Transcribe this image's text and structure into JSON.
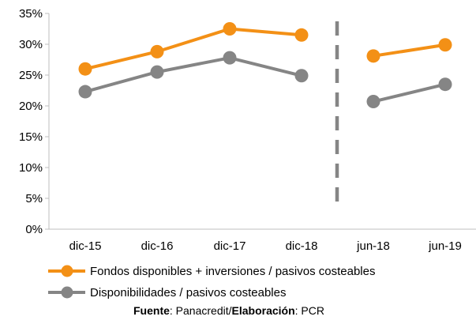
{
  "chart_data": {
    "type": "line",
    "categories": [
      "dic-15",
      "dic-16",
      "dic-17",
      "dic-18",
      "jun-18",
      "jun-19"
    ],
    "segments": [
      [
        0,
        1,
        2,
        3
      ],
      [
        4,
        5
      ]
    ],
    "y_ticks": [
      "0%",
      "5%",
      "10%",
      "15%",
      "20%",
      "25%",
      "30%",
      "35%"
    ],
    "ylim": [
      0,
      35
    ],
    "grid": false,
    "separator": "dashed vertical line between dic-18 and jun-18",
    "legend_position": "bottom",
    "series": [
      {
        "name": "Fondos disponibles + inversiones / pasivos costeables",
        "color": "#F39016",
        "values": [
          26.0,
          28.8,
          32.5,
          31.5,
          28.1,
          29.9
        ]
      },
      {
        "name": "Disponibilidades / pasivos costeables",
        "color": "#858585",
        "values": [
          22.3,
          25.5,
          27.8,
          24.9,
          20.7,
          23.5
        ]
      }
    ]
  },
  "source": {
    "label1": "Fuente",
    "text1": ": Panacredit/",
    "label2": "Elaboración",
    "text2": ": PCR"
  },
  "colors": {
    "axis": "#BFBFBF",
    "separator": "#858585"
  }
}
